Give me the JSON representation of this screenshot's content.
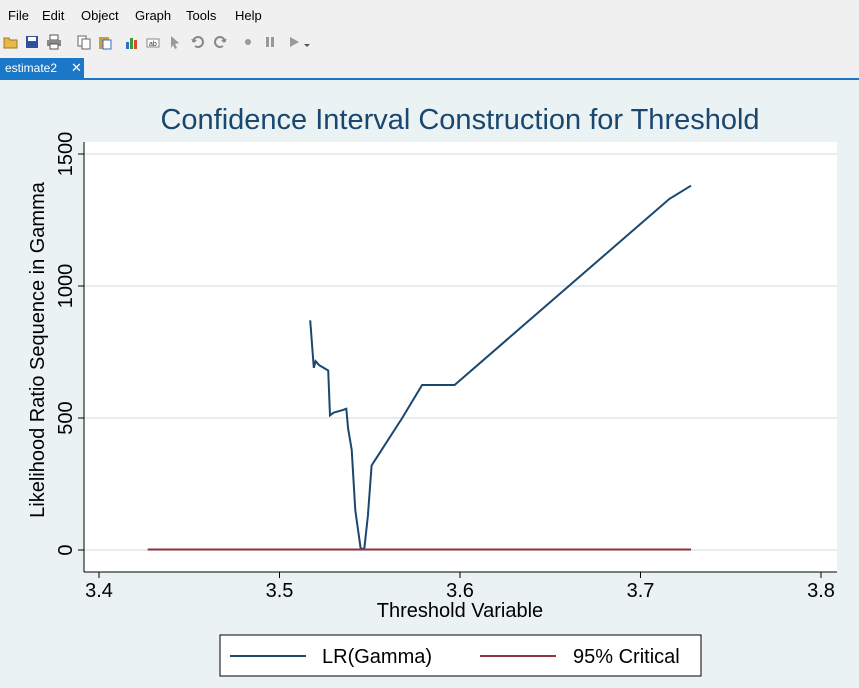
{
  "menu": {
    "items": [
      "File",
      "Edit",
      "Object",
      "Graph",
      "Tools",
      "Help"
    ]
  },
  "toolbar": {
    "icons": [
      "open-icon",
      "save-icon",
      "print-icon",
      "copy-icon",
      "paste-icon",
      "graph-editor-icon",
      "rename-icon",
      "pointer-icon",
      "undo-icon",
      "redo-icon",
      "record-icon",
      "pause-icon",
      "play-icon"
    ]
  },
  "tab": {
    "label": "estimate2",
    "close": "✕"
  },
  "colors": {
    "lr_line": "#1a476f",
    "critical_line": "#90353b",
    "plot_bg": "#ffffff",
    "graph_bg": "#eaf2f3",
    "title": "#1a476f",
    "tab": "#1b78c8"
  },
  "chart_data": {
    "type": "line",
    "title": "Confidence Interval Construction for Threshold",
    "xlabel": "Threshold Variable",
    "ylabel": "Likelihood Ratio Sequence in Gamma",
    "xlim": [
      3.4,
      3.8
    ],
    "ylim": [
      0,
      1500
    ],
    "xticks": [
      "3.4",
      "3.5",
      "3.6",
      "3.7",
      "3.8"
    ],
    "yticks": [
      "0",
      "500",
      "1000",
      "1500"
    ],
    "grid": true,
    "legend_position": "bottom",
    "series": [
      {
        "name": "LR(Gamma)",
        "x": [
          3.517,
          3.519,
          3.52,
          3.522,
          3.527,
          3.528,
          3.53,
          3.535,
          3.537,
          3.538,
          3.54,
          3.542,
          3.545,
          3.547,
          3.549,
          3.551,
          3.568,
          3.579,
          3.597,
          3.716,
          3.728
        ],
        "values": [
          870,
          690,
          715,
          700,
          680,
          510,
          520,
          530,
          535,
          460,
          380,
          150,
          5,
          5,
          130,
          320,
          500,
          625,
          625,
          1330,
          1380
        ]
      },
      {
        "name": "95% Critical",
        "x": [
          3.427,
          3.728
        ],
        "values": [
          2,
          2
        ]
      }
    ]
  }
}
